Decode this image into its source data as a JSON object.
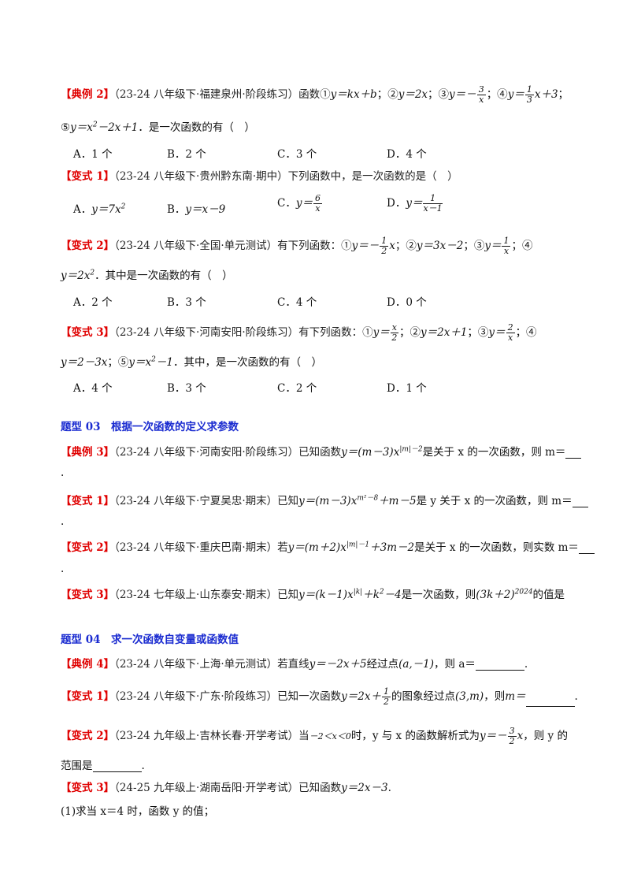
{
  "blocks": {
    "ex2": {
      "tag": "【典例 2】",
      "src": "（23-24 八年级下·福建泉州·阶段练习）函数①",
      "tail": "；⑤",
      "tail2": "．是一次函数的有（　）"
    },
    "ex2_opts": [
      "A．1 个",
      "B．2 个",
      "C．3 个",
      "D．4 个"
    ],
    "v1": {
      "tag": "【变式 1】",
      "src": "（23-24 八年级下·贵州黔东南·期中）下列函数中，是一次函数的是（　）"
    },
    "v2": {
      "tag": "【变式 2】",
      "src": "（23-24 八年级下·全国·单元测试）有下列函数：①",
      "tail": "．其中是一次函数的有（　）"
    },
    "v2_opts": [
      "A．2 个",
      "B．3 个",
      "C．4 个",
      "D．0 个"
    ],
    "v3": {
      "tag": "【变式 3】",
      "src": "（23-24 八年级下·河南安阳·阶段练习）有下列函数：①",
      "tail": "．其中，是一次函数的有（　）"
    },
    "v3_opts": [
      "A．4 个",
      "B．3 个",
      "C．2 个",
      "D．1 个"
    ],
    "h3": "题型 03　根据一次函数的定义求参数",
    "t3ex": {
      "tag": "【典例 3】",
      "src": "（23-24 八年级下·河南安阳·阶段练习）已知函数",
      "tail": "是关于 x 的一次函数，则 m＝"
    },
    "t3v1": {
      "tag": "【变式 1】",
      "src": "（23-24 八年级下·宁夏吴忠·期末）已知",
      "tail": "是 y 关于 x 的一次函数，则 m＝"
    },
    "t3v2": {
      "tag": "【变式 2】",
      "src": "（23-24 八年级下·重庆巴南·期末）若",
      "tail": "是关于 x 的一次函数，则实数 m＝"
    },
    "t3v3": {
      "tag": "【变式 3】",
      "src": "（23-24 七年级上·山东泰安·期末）已知",
      "tail": "是一次函数，则",
      "tail2": "的值是"
    },
    "h4": "题型 04　求一次函数自变量或函数值",
    "t4ex": {
      "tag": "【典例 4】",
      "src": "（23-24 八年级下·上海·单元测试）若直线",
      "tail": "经过点",
      "tail2": "，则 a＝"
    },
    "t4v1": {
      "tag": "【变式 1】",
      "src": "（23-24 八年级下·广东·阶段练习）已知一次函数",
      "tail": "的图象经过点",
      "tail2": "，则"
    },
    "t4v2": {
      "tag": "【变式 2】",
      "src": "（23-24 九年级上·吉林长春·开学考试）当",
      "tail": "时，y 与 x 的函数解析式为",
      "tail2": "，则 y 的",
      "line2": "范围是"
    },
    "t4v3": {
      "tag": "【变式 3】",
      "src": "（24-25 九年级上·湖南岳阳·开学考试）已知函数",
      "eq": "y＝2x－3"
    },
    "q1": "(1)求当 x＝4 时，函数 y 的值；",
    "dot": "."
  }
}
